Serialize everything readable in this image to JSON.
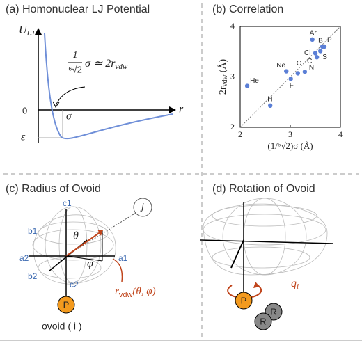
{
  "panels": {
    "a": {
      "title": "(a) Homonuclear LJ Potential",
      "y_axis": {
        "main": "U",
        "sub": "LJ"
      },
      "x_axis": "r",
      "zero": "0",
      "epsilon": "ε",
      "sigma": "σ",
      "equation": {
        "numerator": "1",
        "denominator": "⁶√2",
        "rest": "σ ≃ 2r",
        "sub": "vdw"
      }
    },
    "c": {
      "title": "(c) Radius of Ovoid",
      "c1": "c1",
      "c2": "c2",
      "a1": "a1",
      "a2": "a2",
      "b1": "b1",
      "b2": "b2",
      "theta": "θ",
      "phi": "φ",
      "j": "j",
      "radius": {
        "main": "r",
        "sub": "vdw",
        "rest": "(θ, φ)"
      },
      "p": "P",
      "ovoid": "ovoid ( i )"
    },
    "d": {
      "title": "(d) Rotation of Ovoid",
      "q": {
        "main": "q",
        "sub": "i"
      },
      "p": "P",
      "r1": "R",
      "r2": "R"
    }
  },
  "chart_data": {
    "type": "scatter",
    "title": "(b) Correlation",
    "x_label": "(1/⁶√2)σ (Å)",
    "y_label": {
      "main": "2r",
      "sub": "vdw",
      "unit": "(Å)"
    },
    "labels": [
      "He",
      "H",
      "Ne",
      "F",
      "O",
      "N",
      "Ar",
      "Cl",
      "C",
      "B",
      "P",
      "S"
    ],
    "x": [
      2.14,
      2.6,
      2.92,
      3.01,
      3.15,
      3.29,
      3.44,
      3.5,
      3.53,
      3.64,
      3.68,
      3.6
    ],
    "values": [
      2.82,
      2.43,
      3.11,
      2.96,
      3.07,
      3.1,
      3.74,
      3.47,
      3.39,
      3.6,
      3.6,
      3.51
    ],
    "color": "#5b7fd6",
    "xlim": [
      2,
      4
    ],
    "ylim": [
      2,
      4
    ],
    "xticks": [
      2,
      3,
      4
    ],
    "yticks": [
      2,
      3,
      4
    ]
  }
}
